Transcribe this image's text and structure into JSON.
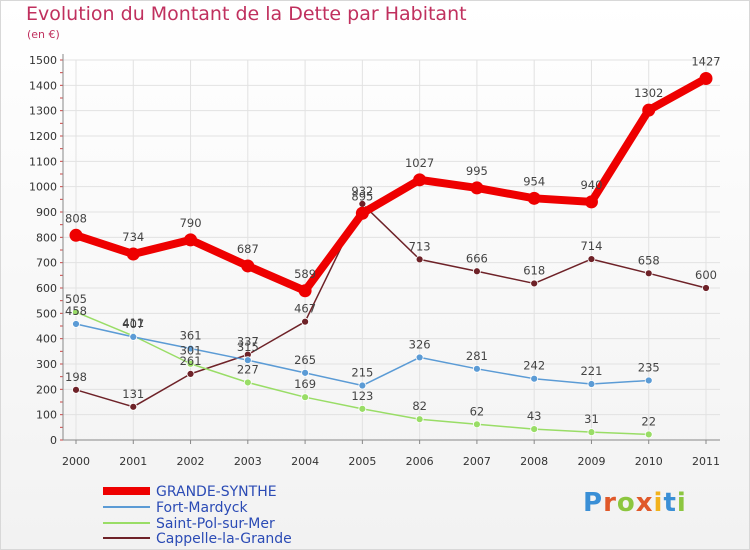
{
  "title": "Evolution du Montant de la Dette par Habitant",
  "unit_label": "(en €)",
  "logo": {
    "text": "Proxiti",
    "letter_colors": [
      "#3a8fd6",
      "#e0592a",
      "#8cc63f",
      "#e0592a",
      "#f2b21c",
      "#3a8fd6",
      "#8cc63f"
    ]
  },
  "chart_data": {
    "type": "line",
    "title": "Evolution du Montant de la Dette par Habitant",
    "ylabel": "(en €)",
    "xlabel": "",
    "x": [
      "2000",
      "2001",
      "2002",
      "2003",
      "2004",
      "2005",
      "2006",
      "2007",
      "2008",
      "2009",
      "2010",
      "2011"
    ],
    "ylim": [
      0,
      1500
    ],
    "yticks": [
      0,
      100,
      200,
      300,
      400,
      500,
      600,
      700,
      800,
      900,
      1000,
      1100,
      1200,
      1300,
      1400,
      1500
    ],
    "grid": true,
    "legend_position": "bottom-left",
    "series": [
      {
        "name": "GRANDE-SYNTHE",
        "color": "#ee0000",
        "values": [
          808,
          734,
          790,
          687,
          589,
          895,
          1027,
          995,
          954,
          940,
          1302,
          1427
        ],
        "labels": [
          "808",
          "734",
          "790",
          "687",
          "589",
          "895",
          "1027",
          "995",
          "954",
          "940",
          "1302",
          "1427"
        ]
      },
      {
        "name": "Fort-Mardyck",
        "color": "#5b9bd5",
        "values": [
          458,
          407,
          361,
          315,
          265,
          215,
          326,
          281,
          242,
          221,
          235,
          null
        ],
        "labels": [
          "458",
          "407",
          "361",
          "315",
          "265",
          "215",
          "326",
          "281",
          "242",
          "221",
          "235",
          ""
        ]
      },
      {
        "name": "Saint-Pol-sur-Mer",
        "color": "#99dd66",
        "values": [
          505,
          411,
          301,
          227,
          169,
          123,
          82,
          62,
          43,
          31,
          22,
          null
        ],
        "labels": [
          "505",
          "411",
          "301",
          "227",
          "169",
          "123",
          "82",
          "62",
          "43",
          "31",
          "22",
          ""
        ]
      },
      {
        "name": "Cappelle-la-Grande",
        "color": "#6e2228",
        "values": [
          198,
          131,
          261,
          337,
          467,
          932,
          713,
          666,
          618,
          714,
          658,
          600
        ],
        "labels": [
          "198",
          "131",
          "261",
          "337",
          "467",
          "932",
          "713",
          "666",
          "618",
          "714",
          "658",
          "600"
        ]
      }
    ]
  }
}
